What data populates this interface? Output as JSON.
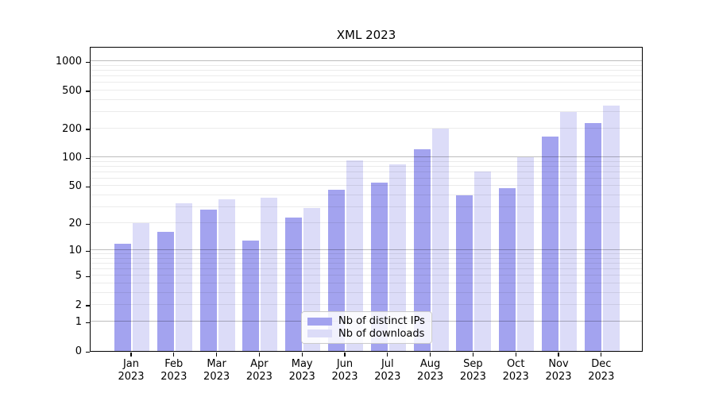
{
  "figure": {
    "title": "XML 2023"
  },
  "chart_data": {
    "type": "bar",
    "title": "XML 2023",
    "categories": [
      "Jan 2023",
      "Feb 2023",
      "Mar 2023",
      "Apr 2023",
      "May 2023",
      "Jun 2023",
      "Jul 2023",
      "Aug 2023",
      "Sep 2023",
      "Oct 2023",
      "Nov 2023",
      "Dec 2023"
    ],
    "series": [
      {
        "name": "Nb of distinct IPs",
        "color": "#a3a3ef",
        "values": [
          12,
          16,
          28,
          13,
          23,
          46,
          55,
          122,
          40,
          48,
          165,
          227
        ]
      },
      {
        "name": "Nb of downloads",
        "color": "#dcdcf8",
        "values": [
          20,
          33,
          36,
          38,
          29,
          93,
          85,
          200,
          72,
          100,
          300,
          350
        ]
      }
    ],
    "yscale": "log1p",
    "ylim": [
      0,
      1440
    ],
    "ytick_values": [
      0,
      1,
      2,
      5,
      10,
      20,
      50,
      100,
      200,
      500,
      1000
    ],
    "ytick_labels": [
      "0",
      "1",
      "2",
      "5",
      "10",
      "20",
      "50",
      "100",
      "200",
      "500",
      "1000"
    ],
    "major_grid_values": [
      1,
      10,
      100,
      1000
    ],
    "minor_grid_values": [
      2,
      3,
      4,
      5,
      6,
      7,
      8,
      9,
      20,
      30,
      40,
      50,
      60,
      70,
      80,
      90,
      200,
      300,
      400,
      500,
      600,
      700,
      800,
      900
    ],
    "grid": true,
    "legend_position": "lower-center",
    "xlabel": "",
    "ylabel": "",
    "colors": {
      "major_grid": "rgba(0,0,0,0.26)",
      "minor_grid": "rgba(0,0,0,0.08)",
      "axis": "#000000",
      "text": "#000000",
      "background": "#ffffff"
    }
  }
}
